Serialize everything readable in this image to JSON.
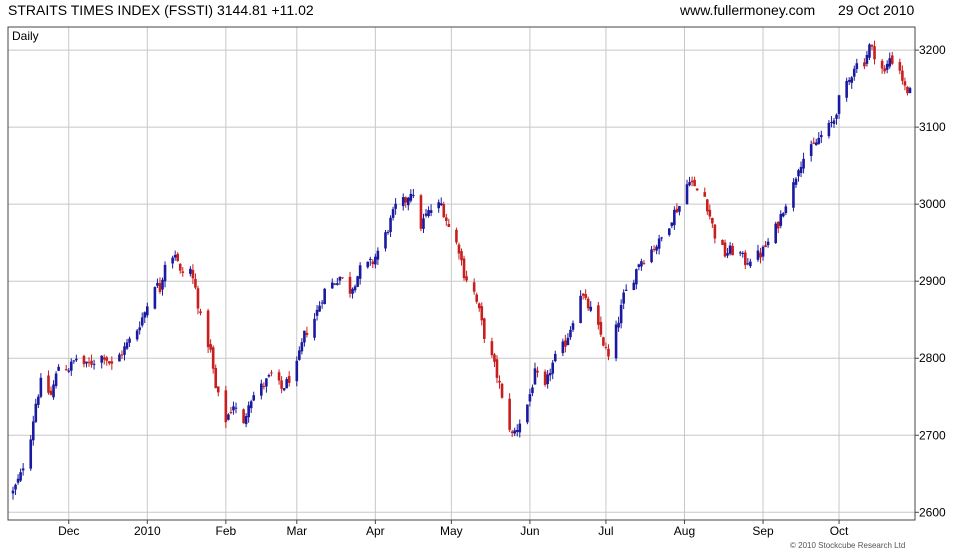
{
  "header": {
    "title": "STRAITS TIMES INDEX (FSSTI) 3144.81 +11.02",
    "source": "www.fullermoney.com",
    "date": "29 Oct 2010"
  },
  "footer": {
    "copyright": "© 2010 Stockcube Research Ltd"
  },
  "chart_data": {
    "type": "candlestick",
    "period_label": "Daily",
    "ylim": [
      2590,
      3230
    ],
    "y_ticks": [
      2600,
      2700,
      2800,
      2900,
      3000,
      3100,
      3200
    ],
    "x_tick_labels": [
      "Dec",
      "2010",
      "Feb",
      "Mar",
      "Apr",
      "May",
      "Jun",
      "Jul",
      "Aug",
      "Sep",
      "Oct"
    ],
    "x_start": "2009-11-09",
    "x_end": "2010-10-29",
    "month_starts": [
      "2009-12-01",
      "2010-01-01",
      "2010-02-01",
      "2010-03-01",
      "2010-04-01",
      "2010-05-01",
      "2010-06-01",
      "2010-07-01",
      "2010-08-01",
      "2010-09-01",
      "2010-10-01"
    ],
    "grid": true,
    "up_color": "#1a1aa0",
    "down_color": "#c81e1e",
    "close_series": [
      [
        "2009-11-09",
        2626
      ],
      [
        "2009-11-12",
        2648
      ],
      [
        "2009-11-16",
        2700
      ],
      [
        "2009-11-18",
        2742
      ],
      [
        "2009-11-20",
        2768
      ],
      [
        "2009-11-24",
        2752
      ],
      [
        "2009-11-27",
        2790
      ],
      [
        "2009-12-01",
        2787
      ],
      [
        "2009-12-04",
        2800
      ],
      [
        "2009-12-08",
        2790
      ],
      [
        "2009-12-11",
        2797
      ],
      [
        "2009-12-15",
        2804
      ],
      [
        "2009-12-18",
        2790
      ],
      [
        "2009-12-22",
        2808
      ],
      [
        "2009-12-28",
        2838
      ],
      [
        "2009-12-31",
        2860
      ],
      [
        "2010-01-04",
        2898
      ],
      [
        "2010-01-06",
        2890
      ],
      [
        "2010-01-08",
        2925
      ],
      [
        "2010-01-12",
        2937
      ],
      [
        "2010-01-14",
        2910
      ],
      [
        "2010-01-18",
        2915
      ],
      [
        "2010-01-20",
        2890
      ],
      [
        "2010-01-22",
        2852
      ],
      [
        "2010-01-26",
        2808
      ],
      [
        "2010-01-28",
        2760
      ],
      [
        "2010-02-01",
        2720
      ],
      [
        "2010-02-04",
        2740
      ],
      [
        "2010-02-08",
        2712
      ],
      [
        "2010-02-10",
        2745
      ],
      [
        "2010-02-12",
        2752
      ],
      [
        "2010-02-17",
        2770
      ],
      [
        "2010-02-19",
        2778
      ],
      [
        "2010-02-23",
        2760
      ],
      [
        "2010-02-25",
        2768
      ],
      [
        "2010-03-01",
        2790
      ],
      [
        "2010-03-04",
        2830
      ],
      [
        "2010-03-08",
        2852
      ],
      [
        "2010-03-10",
        2870
      ],
      [
        "2010-03-12",
        2888
      ],
      [
        "2010-03-16",
        2900
      ],
      [
        "2010-03-18",
        2906
      ],
      [
        "2010-03-22",
        2888
      ],
      [
        "2010-03-24",
        2900
      ],
      [
        "2010-03-26",
        2915
      ],
      [
        "2010-03-31",
        2925
      ],
      [
        "2010-04-05",
        2960
      ],
      [
        "2010-04-07",
        2978
      ],
      [
        "2010-04-09",
        2996
      ],
      [
        "2010-04-13",
        3005
      ],
      [
        "2010-04-15",
        3018
      ],
      [
        "2010-04-19",
        2972
      ],
      [
        "2010-04-21",
        2985
      ],
      [
        "2010-04-23",
        2993
      ],
      [
        "2010-04-27",
        3000
      ],
      [
        "2010-04-30",
        2970
      ],
      [
        "2010-05-04",
        2942
      ],
      [
        "2010-05-06",
        2910
      ],
      [
        "2010-05-10",
        2885
      ],
      [
        "2010-05-12",
        2860
      ],
      [
        "2010-05-14",
        2830
      ],
      [
        "2010-05-18",
        2790
      ],
      [
        "2010-05-20",
        2765
      ],
      [
        "2010-05-21",
        2745
      ],
      [
        "2010-05-25",
        2700
      ],
      [
        "2010-05-27",
        2710
      ],
      [
        "2010-05-31",
        2740
      ],
      [
        "2010-06-03",
        2780
      ],
      [
        "2010-06-07",
        2760
      ],
      [
        "2010-06-09",
        2785
      ],
      [
        "2010-06-11",
        2800
      ],
      [
        "2010-06-15",
        2820
      ],
      [
        "2010-06-17",
        2840
      ],
      [
        "2010-06-21",
        2885
      ],
      [
        "2010-06-23",
        2872
      ],
      [
        "2010-06-25",
        2862
      ],
      [
        "2010-06-29",
        2830
      ],
      [
        "2010-07-02",
        2800
      ],
      [
        "2010-07-06",
        2850
      ],
      [
        "2010-07-08",
        2880
      ],
      [
        "2010-07-12",
        2905
      ],
      [
        "2010-07-14",
        2925
      ],
      [
        "2010-07-16",
        2930
      ],
      [
        "2010-07-20",
        2945
      ],
      [
        "2010-07-22",
        2950
      ],
      [
        "2010-07-26",
        2975
      ],
      [
        "2010-07-28",
        2990
      ],
      [
        "2010-07-30",
        2998
      ],
      [
        "2010-08-03",
        3035
      ],
      [
        "2010-08-05",
        3020
      ],
      [
        "2010-08-09",
        3010
      ],
      [
        "2010-08-11",
        2985
      ],
      [
        "2010-08-13",
        2960
      ],
      [
        "2010-08-17",
        2935
      ],
      [
        "2010-08-19",
        2940
      ],
      [
        "2010-08-23",
        2935
      ],
      [
        "2010-08-25",
        2925
      ],
      [
        "2010-08-27",
        2930
      ],
      [
        "2010-08-31",
        2935
      ],
      [
        "2010-09-03",
        2950
      ],
      [
        "2010-09-07",
        2975
      ],
      [
        "2010-09-09",
        2995
      ],
      [
        "2010-09-13",
        3025
      ],
      [
        "2010-09-15",
        3050
      ],
      [
        "2010-09-17",
        3060
      ],
      [
        "2010-09-21",
        3075
      ],
      [
        "2010-09-23",
        3085
      ],
      [
        "2010-09-27",
        3100
      ],
      [
        "2010-09-29",
        3110
      ],
      [
        "2010-10-01",
        3135
      ],
      [
        "2010-10-05",
        3160
      ],
      [
        "2010-10-07",
        3180
      ],
      [
        "2010-10-11",
        3185
      ],
      [
        "2010-10-13",
        3205
      ],
      [
        "2010-10-15",
        3195
      ],
      [
        "2010-10-19",
        3170
      ],
      [
        "2010-10-21",
        3190
      ],
      [
        "2010-10-25",
        3175
      ],
      [
        "2010-10-27",
        3150
      ],
      [
        "2010-10-29",
        3145
      ]
    ]
  }
}
